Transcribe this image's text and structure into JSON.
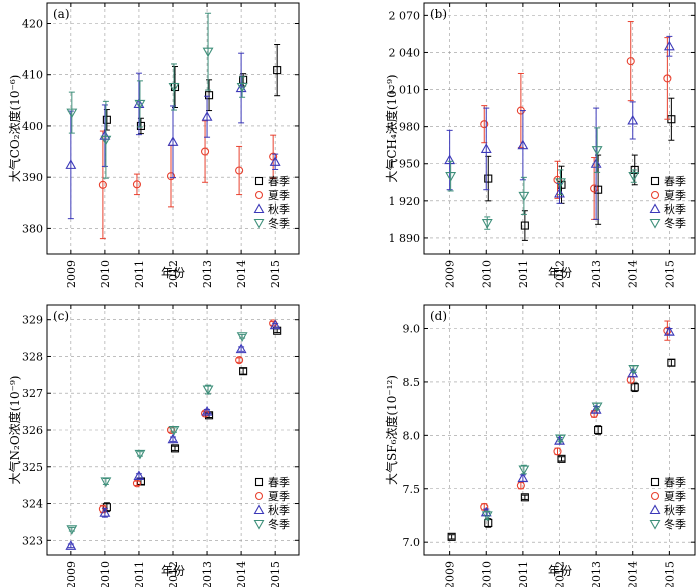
{
  "colors": {
    "春季": "#000000",
    "夏季": "#e8412f",
    "秋季": "#3b38b8",
    "冬季": "#3e8f7a"
  },
  "chart_data": [
    {
      "type": "scatter",
      "tag": "(a)",
      "ylabel": "大气CO₂浓度(10⁻⁶)",
      "xlabel": "年份",
      "x": [
        2009,
        2010,
        2011,
        2012,
        2013,
        2014,
        2015
      ],
      "ylim": [
        375,
        424
      ],
      "yticks": [
        {
          "v": 380,
          "label": "380"
        },
        {
          "v": 390,
          "label": "390"
        },
        {
          "v": 400,
          "label": "400"
        },
        {
          "v": 410,
          "label": "410"
        },
        {
          "v": 420,
          "label": "420"
        }
      ],
      "legend": [
        "春季",
        "夏季",
        "秋季",
        "冬季"
      ],
      "series": [
        {
          "name": "春季",
          "marker": "square",
          "values": [
            null,
            401.2,
            400.0,
            407.6,
            406.0,
            409.0,
            410.9
          ],
          "err": [
            null,
            2.0,
            1.5,
            4.0,
            3.0,
            1.2,
            5.0
          ]
        },
        {
          "name": "夏季",
          "marker": "circle",
          "values": [
            null,
            388.5,
            388.6,
            390.2,
            395.0,
            391.3,
            394.0
          ],
          "err": [
            null,
            10.5,
            2.0,
            6.0,
            6.0,
            4.7,
            4.2
          ]
        },
        {
          "name": "秋季",
          "marker": "triangle-up",
          "values": [
            392.4,
            398.1,
            404.3,
            396.9,
            401.8,
            407.4,
            393.0
          ],
          "err": [
            10.5,
            6.0,
            6.0,
            7.0,
            4.0,
            6.8,
            1.5
          ]
        },
        {
          "name": "冬季",
          "marker": "triangle-down",
          "values": [
            402.6,
            397.3,
            404.3,
            407.6,
            414.5,
            407.6,
            null
          ],
          "err": [
            4.0,
            7.5,
            4.5,
            4.5,
            7.5,
            2.0,
            null
          ]
        }
      ]
    },
    {
      "type": "scatter",
      "tag": "(b)",
      "ylabel": "大气CH₄浓度(10⁻⁹)",
      "xlabel": "年份",
      "x": [
        2009,
        2010,
        2011,
        2012,
        2013,
        2014,
        2015
      ],
      "ylim": [
        1877,
        2080
      ],
      "yticks": [
        {
          "v": 1890,
          "label": "1 890"
        },
        {
          "v": 1920,
          "label": "1 920"
        },
        {
          "v": 1950,
          "label": "1 950"
        },
        {
          "v": 1980,
          "label": "1 980"
        },
        {
          "v": 2010,
          "label": "2 010"
        },
        {
          "v": 2040,
          "label": "2 040"
        },
        {
          "v": 2070,
          "label": "2 070"
        }
      ],
      "legend": [
        "春季",
        "夏季",
        "秋季",
        "冬季"
      ],
      "series": [
        {
          "name": "春季",
          "marker": "square",
          "values": [
            null,
            1938,
            1900,
            1933,
            1929,
            1945,
            1986
          ],
          "err": [
            null,
            18,
            12,
            15,
            28,
            12,
            17
          ]
        },
        {
          "name": "夏季",
          "marker": "circle",
          "values": [
            null,
            1982,
            1993,
            1937,
            1930,
            2033,
            2019
          ],
          "err": [
            null,
            15,
            30,
            15,
            25,
            32,
            33
          ]
        },
        {
          "name": "秋季",
          "marker": "triangle-up",
          "values": [
            1953,
            1962,
            1965,
            1926,
            1950,
            1985,
            2045
          ],
          "err": [
            24,
            33,
            28,
            8,
            45,
            15,
            8
          ]
        },
        {
          "name": "冬季",
          "marker": "triangle-down",
          "values": [
            1940,
            1902,
            1924,
            1935,
            1961,
            1940,
            null
          ],
          "err": [
            12,
            5,
            15,
            10,
            18,
            5,
            null
          ]
        }
      ]
    },
    {
      "type": "scatter",
      "tag": "(c)",
      "ylabel": "大气N₂O浓度(10⁻⁹)",
      "xlabel": "年份",
      "x": [
        2009,
        2010,
        2011,
        2012,
        2013,
        2014,
        2015
      ],
      "ylim": [
        322.6,
        329.4
      ],
      "yticks": [
        {
          "v": 323,
          "label": "323"
        },
        {
          "v": 324,
          "label": "324"
        },
        {
          "v": 325,
          "label": "325"
        },
        {
          "v": 326,
          "label": "326"
        },
        {
          "v": 327,
          "label": "327"
        },
        {
          "v": 328,
          "label": "328"
        },
        {
          "v": 329,
          "label": "329"
        }
      ],
      "legend": [
        "春季",
        "夏季",
        "秋季",
        "冬季"
      ],
      "series": [
        {
          "name": "春季",
          "marker": "square",
          "values": [
            null,
            323.9,
            324.6,
            325.5,
            326.4,
            327.6,
            328.7
          ],
          "err": [
            null,
            0.12,
            0.08,
            0.06,
            0.06,
            0.08,
            0.05
          ]
        },
        {
          "name": "夏季",
          "marker": "circle",
          "values": [
            null,
            323.85,
            324.55,
            326.0,
            326.45,
            327.9,
            328.9
          ],
          "err": [
            null,
            0.1,
            0.06,
            0.06,
            0.05,
            0.06,
            0.05
          ]
        },
        {
          "name": "秋季",
          "marker": "triangle-up",
          "values": [
            322.85,
            323.75,
            324.75,
            325.75,
            326.5,
            328.2,
            328.85
          ],
          "err": [
            0.05,
            0.12,
            0.06,
            0.06,
            0.06,
            0.06,
            0.05
          ]
        },
        {
          "name": "冬季",
          "marker": "triangle-down",
          "values": [
            323.3,
            324.6,
            325.35,
            326.0,
            327.1,
            328.55,
            null
          ],
          "err": [
            0.05,
            0.08,
            0.06,
            0.06,
            0.12,
            0.05,
            null
          ]
        }
      ]
    },
    {
      "type": "scatter",
      "tag": "(d)",
      "ylabel": "大气SF₆浓度(10⁻¹²)",
      "xlabel": "年份",
      "x": [
        2009,
        2010,
        2011,
        2012,
        2013,
        2014,
        2015
      ],
      "ylim": [
        6.88,
        9.22
      ],
      "yticks": [
        {
          "v": 7.0,
          "label": "7.0"
        },
        {
          "v": 7.5,
          "label": "7.5"
        },
        {
          "v": 8.0,
          "label": "8.0"
        },
        {
          "v": 8.5,
          "label": "8.5"
        },
        {
          "v": 9.0,
          "label": "9.0"
        }
      ],
      "legend": [
        "春季",
        "夏季",
        "秋季",
        "冬季"
      ],
      "series": [
        {
          "name": "春季",
          "marker": "square",
          "values": [
            7.05,
            7.18,
            7.42,
            7.78,
            8.05,
            8.45,
            8.68
          ],
          "err": [
            0.02,
            0.04,
            0.02,
            0.02,
            0.04,
            0.04,
            0.03
          ]
        },
        {
          "name": "夏季",
          "marker": "circle",
          "values": [
            null,
            7.33,
            7.53,
            7.85,
            8.2,
            8.52,
            8.98
          ],
          "err": [
            null,
            0.03,
            0.03,
            0.03,
            0.03,
            0.03,
            0.09
          ]
        },
        {
          "name": "秋季",
          "marker": "triangle-up",
          "values": [
            null,
            7.28,
            7.6,
            7.95,
            8.24,
            8.58,
            8.97
          ],
          "err": [
            null,
            0.03,
            0.03,
            0.03,
            0.03,
            0.03,
            0.03
          ]
        },
        {
          "name": "冬季",
          "marker": "triangle-down",
          "values": [
            null,
            7.25,
            7.68,
            7.97,
            8.27,
            8.62,
            null
          ],
          "err": [
            null,
            0.04,
            0.04,
            0.03,
            0.03,
            0.03,
            null
          ]
        }
      ]
    }
  ]
}
